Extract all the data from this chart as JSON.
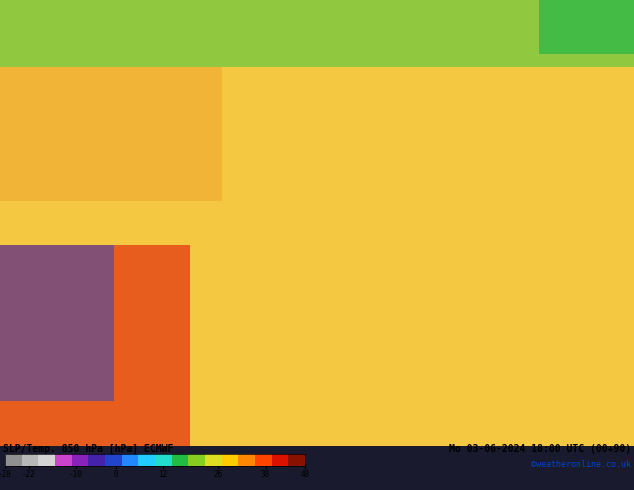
{
  "title_left": "SLP/Temp. 850 hPa [hPa] ECMWF",
  "title_right": "Mo 03-06-2024 18:00 UTC (00+90)",
  "credit": "©weatheronline.co.uk",
  "colorbar_ticks": [
    -28,
    -22,
    -10,
    0,
    12,
    26,
    38,
    48
  ],
  "colorbar_colors": [
    "#808080",
    "#b0b0b0",
    "#d8d8d8",
    "#cc00cc",
    "#8800cc",
    "#0000cc",
    "#0044ff",
    "#0088ff",
    "#00ccff",
    "#00ffcc",
    "#00cc00",
    "#88cc00",
    "#ffff00",
    "#ffcc00",
    "#ff8800",
    "#ff4400",
    "#cc0000",
    "#880000"
  ],
  "colorbar_bounds": [
    -28,
    -22,
    -16,
    -10,
    -4,
    0,
    6,
    12,
    18,
    24,
    26,
    30,
    34,
    38,
    42,
    46,
    48
  ],
  "bg_color": "#f0e8c8",
  "map_bg_top": "#b0e0a0",
  "map_bg_warm": "#ffcc44",
  "map_bg_hot": "#ff6600",
  "fig_width": 6.34,
  "fig_height": 4.9,
  "dpi": 100
}
